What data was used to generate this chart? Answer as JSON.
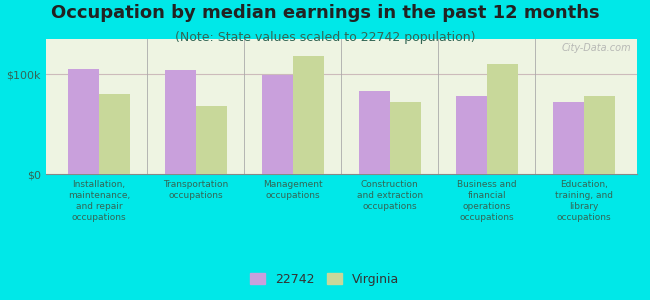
{
  "title": "Occupation by median earnings in the past 12 months",
  "subtitle": "(Note: State values scaled to 22742 population)",
  "categories": [
    "Installation,\nmaintenance,\nand repair\noccupations",
    "Transportation\noccupations",
    "Management\noccupations",
    "Construction\nand extraction\noccupations",
    "Business and\nfinancial\noperations\noccupations",
    "Education,\ntraining, and\nlibrary\noccupations"
  ],
  "values_22742": [
    105000,
    104000,
    99000,
    83000,
    78000,
    72000
  ],
  "values_virginia": [
    80000,
    68000,
    118000,
    72000,
    110000,
    78000
  ],
  "bar_color_22742": "#c9a0dc",
  "bar_color_virginia": "#c8d89a",
  "ylim": [
    0,
    135000
  ],
  "ytick_labels": [
    "$0",
    "$100k"
  ],
  "background_color": "#00e8e8",
  "plot_bg_color": "#eef4e2",
  "legend_label_22742": "22742",
  "legend_label_virginia": "Virginia",
  "watermark": "City-Data.com",
  "title_fontsize": 13,
  "subtitle_fontsize": 9,
  "tick_label_color": "#336655",
  "title_color": "#222222",
  "subtitle_color": "#336655"
}
